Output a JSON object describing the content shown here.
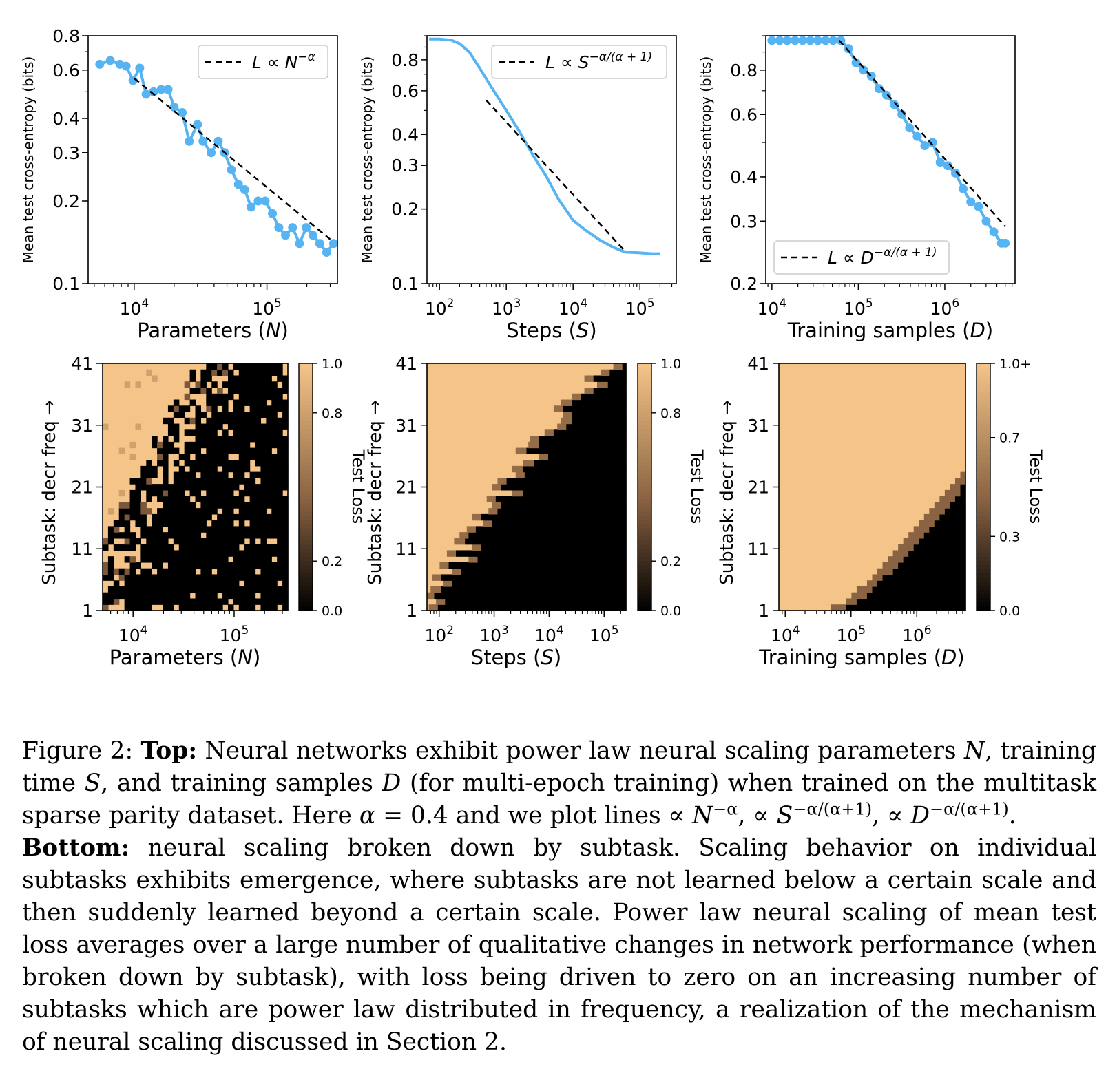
{
  "colors": {
    "line": "#56b4f2",
    "dash": "#000000",
    "cmap_high": "#f5c488",
    "cmap_mid": "#8a6342",
    "cmap_low": "#000000"
  },
  "top_ylabel": "Mean test cross-entropy (bits)",
  "heat_ylabel": "Subtask: decr freq →",
  "colorbar_label": "Test Loss",
  "chart_data": [
    {
      "id": "top-params",
      "type": "line",
      "xscale": "log",
      "yscale": "log",
      "xlabel_pre": "Parameters (",
      "xlabel_var": "N",
      "xlabel_post": ")",
      "xlim": [
        4500,
        340000
      ],
      "ylim": [
        0.1,
        0.8
      ],
      "xticks": [
        {
          "v": 10000,
          "b": "10",
          "e": "4"
        },
        {
          "v": 100000,
          "b": "10",
          "e": "5"
        }
      ],
      "yticks": [
        {
          "v": 0.1,
          "t": "0.1"
        },
        {
          "v": 0.2,
          "t": "0.2"
        },
        {
          "v": 0.3,
          "t": "0.3"
        },
        {
          "v": 0.4,
          "t": "0.4"
        },
        {
          "v": 0.6,
          "t": "0.6"
        },
        {
          "v": 0.8,
          "t": "0.8"
        }
      ],
      "markers": true,
      "series": {
        "x": [
          5500,
          6600,
          7800,
          8700,
          9800,
          11000,
          12300,
          14000,
          16000,
          18000,
          20000,
          23000,
          26000,
          30000,
          33000,
          38000,
          43000,
          48000,
          54000,
          61000,
          68000,
          76000,
          86000,
          97000,
          110000,
          123000,
          138000,
          156000,
          176000,
          198000,
          222000,
          250000,
          282000,
          318000
        ],
        "y": [
          0.63,
          0.65,
          0.63,
          0.62,
          0.55,
          0.61,
          0.49,
          0.5,
          0.51,
          0.51,
          0.44,
          0.42,
          0.33,
          0.38,
          0.33,
          0.3,
          0.33,
          0.3,
          0.26,
          0.23,
          0.22,
          0.19,
          0.2,
          0.2,
          0.18,
          0.16,
          0.15,
          0.16,
          0.14,
          0.16,
          0.15,
          0.14,
          0.13,
          0.14
        ]
      },
      "fit": {
        "name": "L ∝ N",
        "exp": "−α",
        "x": [
          10000,
          300000
        ],
        "y": [
          0.56,
          0.145
        ]
      },
      "legend_loc": "upper right"
    },
    {
      "id": "top-steps",
      "type": "line",
      "xscale": "log",
      "yscale": "log",
      "xlabel_pre": "Steps (",
      "xlabel_var": "S",
      "xlabel_post": ")",
      "xlim": [
        65,
        350000
      ],
      "ylim": [
        0.1,
        1.0
      ],
      "xticks": [
        {
          "v": 100,
          "b": "10",
          "e": "2"
        },
        {
          "v": 1000,
          "b": "10",
          "e": "3"
        },
        {
          "v": 10000,
          "b": "10",
          "e": "4"
        },
        {
          "v": 100000,
          "b": "10",
          "e": "5"
        }
      ],
      "yticks": [
        {
          "v": 0.1,
          "t": "0.1"
        },
        {
          "v": 0.2,
          "t": "0.2"
        },
        {
          "v": 0.3,
          "t": "0.3"
        },
        {
          "v": 0.4,
          "t": "0.4"
        },
        {
          "v": 0.6,
          "t": "0.6"
        },
        {
          "v": 0.8,
          "t": "0.8"
        }
      ],
      "markers": false,
      "series": {
        "x": [
          70,
          100,
          150,
          200,
          280,
          400,
          600,
          1000,
          1500,
          2500,
          4000,
          6000,
          10000,
          15000,
          25000,
          40000,
          60000,
          100000,
          150000,
          200000
        ],
        "y": [
          0.97,
          0.97,
          0.96,
          0.93,
          0.86,
          0.74,
          0.62,
          0.5,
          0.42,
          0.33,
          0.27,
          0.22,
          0.18,
          0.165,
          0.15,
          0.14,
          0.134,
          0.133,
          0.132,
          0.132
        ]
      },
      "fit": {
        "name": "L ∝ S",
        "exp": "−α/(α + 1)",
        "x": [
          500,
          60000
        ],
        "y": [
          0.55,
          0.135
        ]
      },
      "legend_loc": "upper right"
    },
    {
      "id": "top-samples",
      "type": "line",
      "xscale": "log",
      "yscale": "log",
      "xlabel_pre": "Training samples (",
      "xlabel_var": "D",
      "xlabel_post": ")",
      "xlim": [
        8500,
        6500000
      ],
      "ylim": [
        0.2,
        1.0
      ],
      "xticks": [
        {
          "v": 10000,
          "b": "10",
          "e": "4"
        },
        {
          "v": 100000,
          "b": "10",
          "e": "5"
        },
        {
          "v": 1000000,
          "b": "10",
          "e": "6"
        }
      ],
      "yticks": [
        {
          "v": 0.2,
          "t": "0.2"
        },
        {
          "v": 0.3,
          "t": "0.3"
        },
        {
          "v": 0.4,
          "t": "0.4"
        },
        {
          "v": 0.6,
          "t": "0.6"
        },
        {
          "v": 0.8,
          "t": "0.8"
        }
      ],
      "markers": true,
      "series": {
        "x": [
          10000,
          12300,
          15000,
          18500,
          22700,
          27800,
          34000,
          41800,
          51000,
          62600,
          76800,
          94000,
          115000,
          141000,
          173000,
          212000,
          260000,
          319000,
          391000,
          480000,
          588000,
          721000,
          884000,
          1084000,
          1329000,
          1630000,
          1999000,
          2451000,
          3006000,
          3686000,
          4520000,
          5000000
        ],
        "y": [
          0.97,
          0.97,
          0.97,
          0.97,
          0.97,
          0.97,
          0.97,
          0.97,
          0.97,
          0.97,
          0.92,
          0.84,
          0.8,
          0.77,
          0.71,
          0.68,
          0.64,
          0.6,
          0.55,
          0.52,
          0.49,
          0.5,
          0.44,
          0.43,
          0.41,
          0.37,
          0.34,
          0.33,
          0.3,
          0.28,
          0.26,
          0.26
        ]
      },
      "fit": {
        "name": "L ∝ D",
        "exp": "−α/(α + 1)",
        "x": [
          60000,
          5000000
        ],
        "y": [
          0.97,
          0.29
        ]
      },
      "legend_loc": "lower left"
    },
    {
      "id": "heat-params",
      "type": "heatmap",
      "xscale": "log",
      "xlabel_pre": "Parameters (",
      "xlabel_var": "N",
      "xlabel_post": ")",
      "xlim": [
        5000,
        340000
      ],
      "rows": 41,
      "cols": 34,
      "boundary_start": 4500,
      "boundary_end": 50000,
      "xticks": [
        {
          "v": 10000,
          "b": "10",
          "e": "4"
        },
        {
          "v": 100000,
          "b": "10",
          "e": "5"
        }
      ],
      "yticks": [
        {
          "v": 1,
          "t": "1"
        },
        {
          "v": 11,
          "t": "11"
        },
        {
          "v": 21,
          "t": "21"
        },
        {
          "v": 31,
          "t": "31"
        },
        {
          "v": 41,
          "t": "41"
        }
      ],
      "cbar_ticks": [
        {
          "v": 0.0,
          "t": "0.0"
        },
        {
          "v": 0.2,
          "t": "0.2"
        },
        {
          "v": 0.8,
          "t": "0.8"
        },
        {
          "v": 1.0,
          "t": "1.0"
        }
      ]
    },
    {
      "id": "heat-steps",
      "type": "heatmap",
      "xscale": "log",
      "xlabel_pre": "Steps (",
      "xlabel_var": "S",
      "xlabel_post": ")",
      "xlim": [
        60,
        250000
      ],
      "rows": 41,
      "cols": 110,
      "boundary_start": 80,
      "boundary_end": 60000,
      "xticks": [
        {
          "v": 100,
          "b": "10",
          "e": "2"
        },
        {
          "v": 1000,
          "b": "10",
          "e": "3"
        },
        {
          "v": 10000,
          "b": "10",
          "e": "4"
        },
        {
          "v": 100000,
          "b": "10",
          "e": "5"
        }
      ],
      "yticks": [
        {
          "v": 1,
          "t": "1"
        },
        {
          "v": 11,
          "t": "11"
        },
        {
          "v": 21,
          "t": "21"
        },
        {
          "v": 31,
          "t": "31"
        },
        {
          "v": 41,
          "t": "41"
        }
      ],
      "cbar_ticks": [
        {
          "v": 0.0,
          "t": "0.0"
        },
        {
          "v": 0.2,
          "t": "0.2"
        },
        {
          "v": 0.8,
          "t": "0.8"
        },
        {
          "v": 1.0,
          "t": "1.0"
        }
      ]
    },
    {
      "id": "heat-samples",
      "type": "heatmap",
      "xscale": "log",
      "xlabel_pre": "Training samples (",
      "xlabel_var": "D",
      "xlabel_post": ")",
      "xlim": [
        8000,
        5500000
      ],
      "rows": 41,
      "cols": 36,
      "boundary_start": 60000,
      "boundary_end": 5000000,
      "xticks": [
        {
          "v": 10000,
          "b": "10",
          "e": "4"
        },
        {
          "v": 100000,
          "b": "10",
          "e": "5"
        },
        {
          "v": 1000000,
          "b": "10",
          "e": "6"
        }
      ],
      "yticks": [
        {
          "v": 1,
          "t": "1"
        },
        {
          "v": 11,
          "t": "11"
        },
        {
          "v": 21,
          "t": "21"
        },
        {
          "v": 31,
          "t": "31"
        },
        {
          "v": 41,
          "t": "41"
        }
      ],
      "cbar_ticks": [
        {
          "v": 0.0,
          "t": "0.0"
        },
        {
          "v": 0.3,
          "t": "0.3"
        },
        {
          "v": 0.7,
          "t": "0.7"
        },
        {
          "v": 1.0,
          "t": "1.0+"
        }
      ]
    }
  ],
  "caption": {
    "fig_label": "Figure 2:",
    "top_label": "Top:",
    "t1": " Neural networks exhibit power law neural scaling parameters ",
    "v_N": "N",
    "t2": ", training time ",
    "v_S": "S",
    "t3": ", and training samples ",
    "v_D": "D",
    "t4": " (for multi-epoch training) when trained on the multitask sparse parity dataset. Here ",
    "v_alpha": "α",
    "t5": " = 0.4 and we plot lines ∝ ",
    "e_N": "N",
    "exp_N": "−α",
    "sep1": ", ∝ ",
    "e_S": "S",
    "exp_S": "−α/(α+1)",
    "sep2": ", ∝ ",
    "e_D": "D",
    "exp_D": "−α/(α+1)",
    "t6": ".",
    "bottom_label": "Bottom:",
    "t7": " neural scaling broken down by subtask. Scaling behavior on individual subtasks exhibits emergence, where subtasks are not learned below a certain scale and then suddenly learned beyond a certain scale. Power law neural scaling of mean test loss averages over a large number of qualitative changes in network performance (when broken down by subtask), with loss being driven to zero on an increasing number of subtasks which are power law distributed in frequency, a realization of the mechanism of neural scaling discussed in Section 2."
  }
}
